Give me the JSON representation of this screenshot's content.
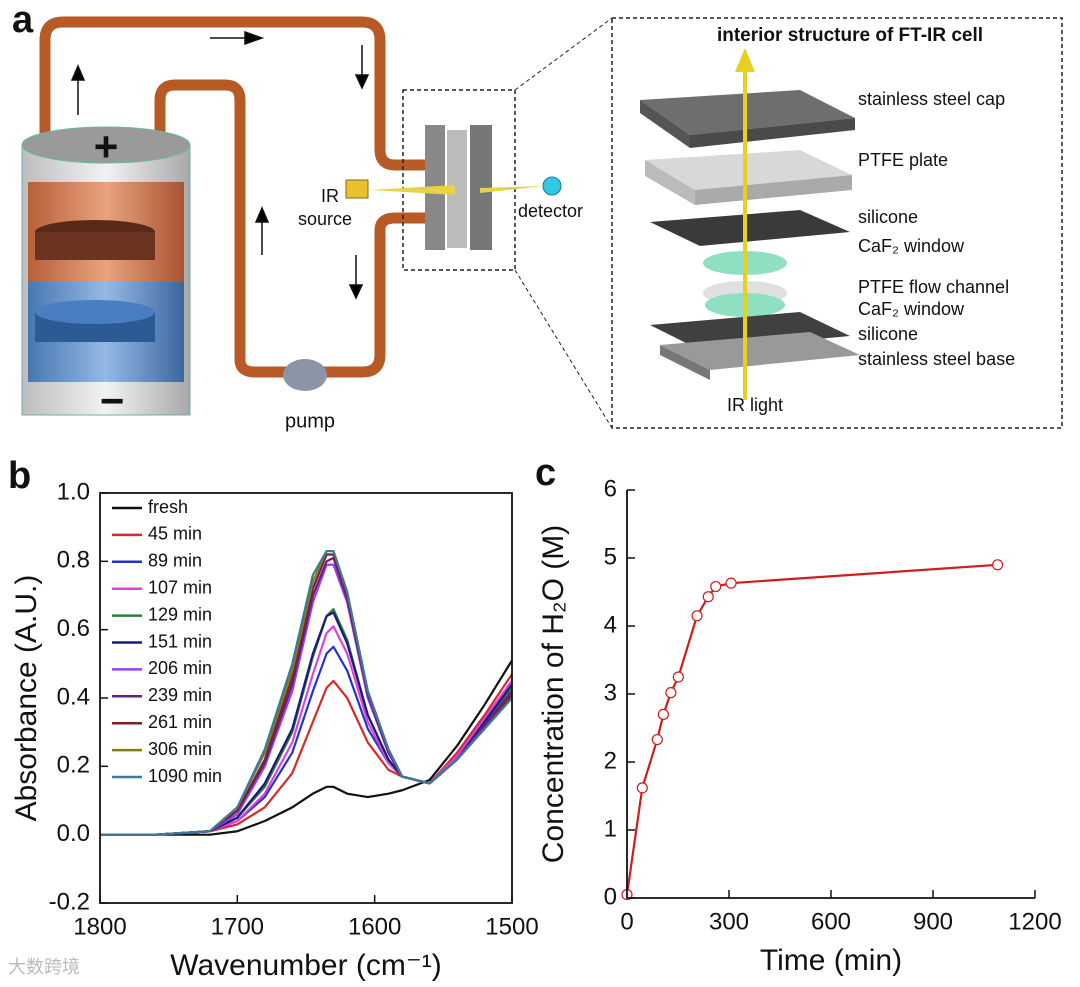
{
  "diagram": {
    "panel": "a",
    "plus": "+",
    "minus": "−",
    "ir_source": [
      "IR",
      "source"
    ],
    "detector": "detector",
    "pump": "pump",
    "cell_title": "interior structure of FT-IR cell",
    "layers": [
      "stainless steel cap",
      "PTFE plate",
      "silicone",
      "CaF₂ window",
      "PTFE flow channel",
      "CaF₂ window",
      "silicone",
      "stainless steel base"
    ],
    "ir_light": "IR light"
  },
  "watermark": "大数跨境",
  "chart_data": [
    {
      "type": "line",
      "panel": "b",
      "x_label": "Wavenumber (cm⁻¹)",
      "y_label": "Absorbance (A.U.)",
      "x": [
        1800,
        1760,
        1720,
        1700,
        1680,
        1660,
        1645,
        1635,
        1630,
        1620,
        1605,
        1590,
        1580,
        1560,
        1540,
        1520,
        1500
      ],
      "xlim": [
        1800,
        1500
      ],
      "xticks": [
        1800,
        1700,
        1600,
        1500
      ],
      "ylim": [
        -0.2,
        1.0
      ],
      "yticks": [
        -0.2,
        {
          "value": 0,
          "label": "0.0"
        },
        0.2,
        0.4,
        0.6,
        0.8,
        {
          "value": 1.0,
          "label": "1.0"
        }
      ],
      "legend": "upper left",
      "series": [
        {
          "name": "fresh",
          "color": "#111111",
          "values": [
            0,
            0,
            0,
            0.01,
            0.04,
            0.08,
            0.12,
            0.14,
            0.14,
            0.12,
            0.11,
            0.12,
            0.13,
            0.16,
            0.26,
            0.38,
            0.51
          ]
        },
        {
          "name": "45 min",
          "color": "#d62a2a",
          "values": [
            0,
            0,
            0.01,
            0.03,
            0.08,
            0.18,
            0.33,
            0.43,
            0.45,
            0.4,
            0.27,
            0.19,
            0.17,
            0.15,
            0.24,
            0.35,
            0.47
          ]
        },
        {
          "name": "89 min",
          "color": "#2233cc",
          "values": [
            0,
            0,
            0.01,
            0.04,
            0.11,
            0.24,
            0.42,
            0.53,
            0.55,
            0.48,
            0.31,
            0.21,
            0.17,
            0.15,
            0.23,
            0.34,
            0.45
          ]
        },
        {
          "name": "107 min",
          "color": "#e040e0",
          "values": [
            0,
            0,
            0.01,
            0.04,
            0.12,
            0.27,
            0.47,
            0.59,
            0.61,
            0.53,
            0.33,
            0.21,
            0.17,
            0.15,
            0.23,
            0.34,
            0.45
          ]
        },
        {
          "name": "129 min",
          "color": "#2e7d32",
          "values": [
            0,
            0,
            0.01,
            0.05,
            0.14,
            0.3,
            0.52,
            0.64,
            0.66,
            0.57,
            0.35,
            0.22,
            0.17,
            0.15,
            0.22,
            0.33,
            0.43
          ]
        },
        {
          "name": "151 min",
          "color": "#1a1a7a",
          "values": [
            0,
            0,
            0.01,
            0.05,
            0.15,
            0.31,
            0.53,
            0.64,
            0.65,
            0.56,
            0.35,
            0.22,
            0.17,
            0.15,
            0.22,
            0.33,
            0.44
          ]
        },
        {
          "name": "206 min",
          "color": "#9b40ee",
          "values": [
            0,
            0,
            0.01,
            0.06,
            0.2,
            0.42,
            0.68,
            0.79,
            0.79,
            0.68,
            0.4,
            0.24,
            0.17,
            0.15,
            0.22,
            0.32,
            0.42
          ]
        },
        {
          "name": "239 min",
          "color": "#6a1b8a",
          "values": [
            0,
            0,
            0.01,
            0.07,
            0.21,
            0.44,
            0.7,
            0.8,
            0.81,
            0.69,
            0.41,
            0.24,
            0.17,
            0.15,
            0.22,
            0.32,
            0.42
          ]
        },
        {
          "name": "261 min",
          "color": "#7b2222",
          "values": [
            0,
            0,
            0.01,
            0.07,
            0.22,
            0.46,
            0.72,
            0.82,
            0.82,
            0.7,
            0.42,
            0.25,
            0.17,
            0.15,
            0.22,
            0.31,
            0.41
          ]
        },
        {
          "name": "306 min",
          "color": "#808010",
          "values": [
            0,
            0,
            0.01,
            0.08,
            0.24,
            0.48,
            0.74,
            0.83,
            0.83,
            0.71,
            0.42,
            0.25,
            0.17,
            0.15,
            0.22,
            0.31,
            0.4
          ]
        },
        {
          "name": "1090 min",
          "color": "#3a7aa0",
          "values": [
            0,
            0,
            0.01,
            0.08,
            0.25,
            0.5,
            0.76,
            0.83,
            0.83,
            0.71,
            0.42,
            0.25,
            0.17,
            0.15,
            0.22,
            0.31,
            0.4
          ]
        }
      ]
    },
    {
      "type": "line",
      "panel": "c",
      "x_label": "Time (min)",
      "y_label": "Concentration of H₂O (M)",
      "x": [
        0,
        45,
        89,
        107,
        129,
        151,
        206,
        239,
        261,
        306,
        1090
      ],
      "xlim": [
        0,
        1200
      ],
      "xticks": [
        0,
        300,
        600,
        900,
        1200
      ],
      "ylim": [
        0,
        6
      ],
      "yticks": [
        0,
        1,
        2,
        3,
        4,
        5,
        6
      ],
      "markers": true,
      "series": [
        {
          "color": "#d01c1c",
          "values": [
            0.05,
            1.62,
            2.33,
            2.7,
            3.02,
            3.25,
            4.15,
            4.43,
            4.58,
            4.63,
            4.9
          ]
        }
      ]
    }
  ]
}
